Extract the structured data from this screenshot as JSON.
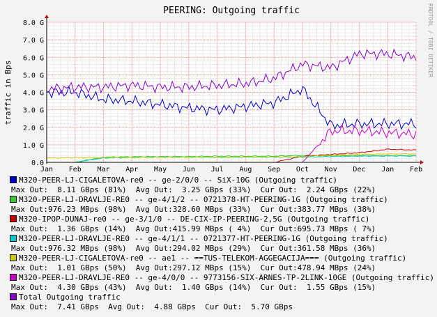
{
  "chart_data": {
    "type": "line",
    "title": "PEERING: Outgoing traffic",
    "ylabel": "traffic in Bps",
    "watermark": "RRDTOOL / TOBI OETIKER",
    "ylim": [
      0,
      8
    ],
    "y_unit": "G",
    "yticks": [
      "0.0",
      "1.0 G",
      "2.0 G",
      "3.0 G",
      "4.0 G",
      "5.0 G",
      "6.0 G",
      "7.0 G",
      "8.0 G"
    ],
    "xticks": [
      "Jan",
      "Feb",
      "Mar",
      "Apr",
      "May",
      "Jun",
      "Jul",
      "Aug",
      "Sep",
      "Oct",
      "Nov",
      "Dec",
      "Jan",
      "Feb"
    ],
    "grid": true,
    "colors": {
      "background": "#f3f3f3",
      "plot": "#ffffff",
      "grid_major": "#ff9a9a",
      "grid_minor": "#e8e8e8"
    },
    "series": [
      {
        "name": "M320-PEER-LJ-CIGALETOVA-re0 -- ge-2/0/0 -- SiX-10G (Outgoing traffic)",
        "color": "#0000cc",
        "x": [
          "Jan",
          "Feb",
          "Mar",
          "Apr",
          "May",
          "Jun",
          "Jul",
          "Aug",
          "Sep",
          "Oct",
          "Nov",
          "Dec",
          "Jan",
          "Feb"
        ],
        "values": [
          4.0,
          4.0,
          3.6,
          3.5,
          3.3,
          3.1,
          3.0,
          3.2,
          3.4,
          4.2,
          2.1,
          2.2,
          2.2,
          2.2
        ],
        "stats": "Max Out:  8.11 GBps (81%)  Avg Out:  3.25 GBps (33%)  Cur Out:  2.24 GBps (22%)"
      },
      {
        "name": "M320-PEER-LJ-DRAVLJE-RE0 -- ge-4/1/2 -- 0721378-HT-PEERING-1G (Outgoing traffic)",
        "color": "#33cc33",
        "x": [
          "Jan",
          "Feb",
          "Mar",
          "Apr",
          "May",
          "Jun",
          "Jul",
          "Aug",
          "Sep",
          "Oct",
          "Nov",
          "Dec",
          "Jan",
          "Feb"
        ],
        "values": [
          0.0,
          0.0,
          0.3,
          0.32,
          0.33,
          0.33,
          0.35,
          0.35,
          0.35,
          0.4,
          0.37,
          0.38,
          0.38,
          0.38
        ],
        "stats": "Max Out:976.23 MBps (98%)  Avg Out:328.60 MBps (33%)  Cur Out:383.77 MBps (38%)"
      },
      {
        "name": "M320-IPOP-DUNAJ-re0 -- ge-3/1/0 -- DE-CIX-IP-PEERING-2,5G (Outgoing traffic)",
        "color": "#cc0000",
        "x": [
          "Jan",
          "Feb",
          "Mar",
          "Apr",
          "May",
          "Jun",
          "Jul",
          "Aug",
          "Sep",
          "Oct",
          "Nov",
          "Dec",
          "Jan",
          "Feb"
        ],
        "values": [
          0.0,
          0.0,
          0.0,
          0.0,
          0.0,
          0.0,
          0.0,
          0.0,
          0.0,
          0.35,
          0.45,
          0.55,
          0.75,
          0.7
        ],
        "stats": "Max Out:  1.36 GBps (14%)  Avg Out:415.99 MBps ( 4%)  Cur Out:695.73 MBps ( 7%)"
      },
      {
        "name": "M320-PEER-LJ-DRAVLJE-RE0 -- ge-4/1/1 -- 0721377-HT-PEERING-1G (Outgoing traffic)",
        "color": "#00cccc",
        "x": [
          "Jan",
          "Feb",
          "Mar",
          "Apr",
          "May",
          "Jun",
          "Jul",
          "Aug",
          "Sep",
          "Oct",
          "Nov",
          "Dec",
          "Jan",
          "Feb"
        ],
        "values": [
          0.0,
          0.0,
          0.25,
          0.28,
          0.3,
          0.3,
          0.28,
          0.3,
          0.3,
          0.3,
          0.33,
          0.35,
          0.36,
          0.36
        ],
        "stats": "Max Out:976.32 MBps (98%)  Avg Out:294.02 MBps (29%)  Cur Out:361.58 MBps (36%)"
      },
      {
        "name": "M320-PEER-LJ-CIGALETOVA-re0 -- ae1 -- ==TUS-TELEKOM-AGGEGACIJA=== (Outgoing traffic)",
        "color": "#cccc00",
        "x": [
          "Jan",
          "Feb",
          "Mar",
          "Apr",
          "May",
          "Jun",
          "Jul",
          "Aug",
          "Sep",
          "Oct",
          "Nov",
          "Dec",
          "Jan",
          "Feb"
        ],
        "values": [
          0.25,
          0.27,
          0.28,
          0.28,
          0.29,
          0.29,
          0.29,
          0.3,
          0.3,
          0.33,
          0.4,
          0.45,
          0.48,
          0.48
        ],
        "stats": "Max Out:  1.01 GBps (50%)  Avg Out:297.12 MBps (15%)  Cur Out:478.94 MBps (24%)"
      },
      {
        "name": "M320-PEER-LJ-DRAVLJE-RE0 -- ge-4/0/0 -- 9773156-SIX-ARNES-TP-2LINK-10GE (Outgoing traffic)",
        "color": "#cc00cc",
        "x": [
          "Jan",
          "Feb",
          "Mar",
          "Apr",
          "May",
          "Jun",
          "Jul",
          "Aug",
          "Sep",
          "Oct",
          "Nov",
          "Dec",
          "Jan",
          "Feb"
        ],
        "values": [
          0.0,
          0.0,
          0.0,
          0.0,
          0.0,
          0.0,
          0.0,
          0.0,
          0.0,
          0.0,
          1.8,
          1.8,
          1.7,
          1.6
        ],
        "stats": "Max Out:  4.30 GBps (43%)  Avg Out:  1.40 GBps (14%)  Cur Out:  1.55 GBps (15%)"
      },
      {
        "name": "Total Outgoing traffic",
        "color": "#8800cc",
        "x": [
          "Jan",
          "Feb",
          "Mar",
          "Apr",
          "May",
          "Jun",
          "Jul",
          "Aug",
          "Sep",
          "Oct",
          "Nov",
          "Dec",
          "Jan",
          "Feb"
        ],
        "values": [
          4.2,
          4.3,
          4.3,
          4.4,
          4.3,
          4.3,
          4.4,
          4.5,
          4.8,
          5.6,
          5.4,
          6.2,
          6.2,
          6.0
        ],
        "stats": "Max Out:  7.41 GBps  Avg Out:  4.88 GBps  Cur Out:  5.70 GBps"
      }
    ]
  }
}
